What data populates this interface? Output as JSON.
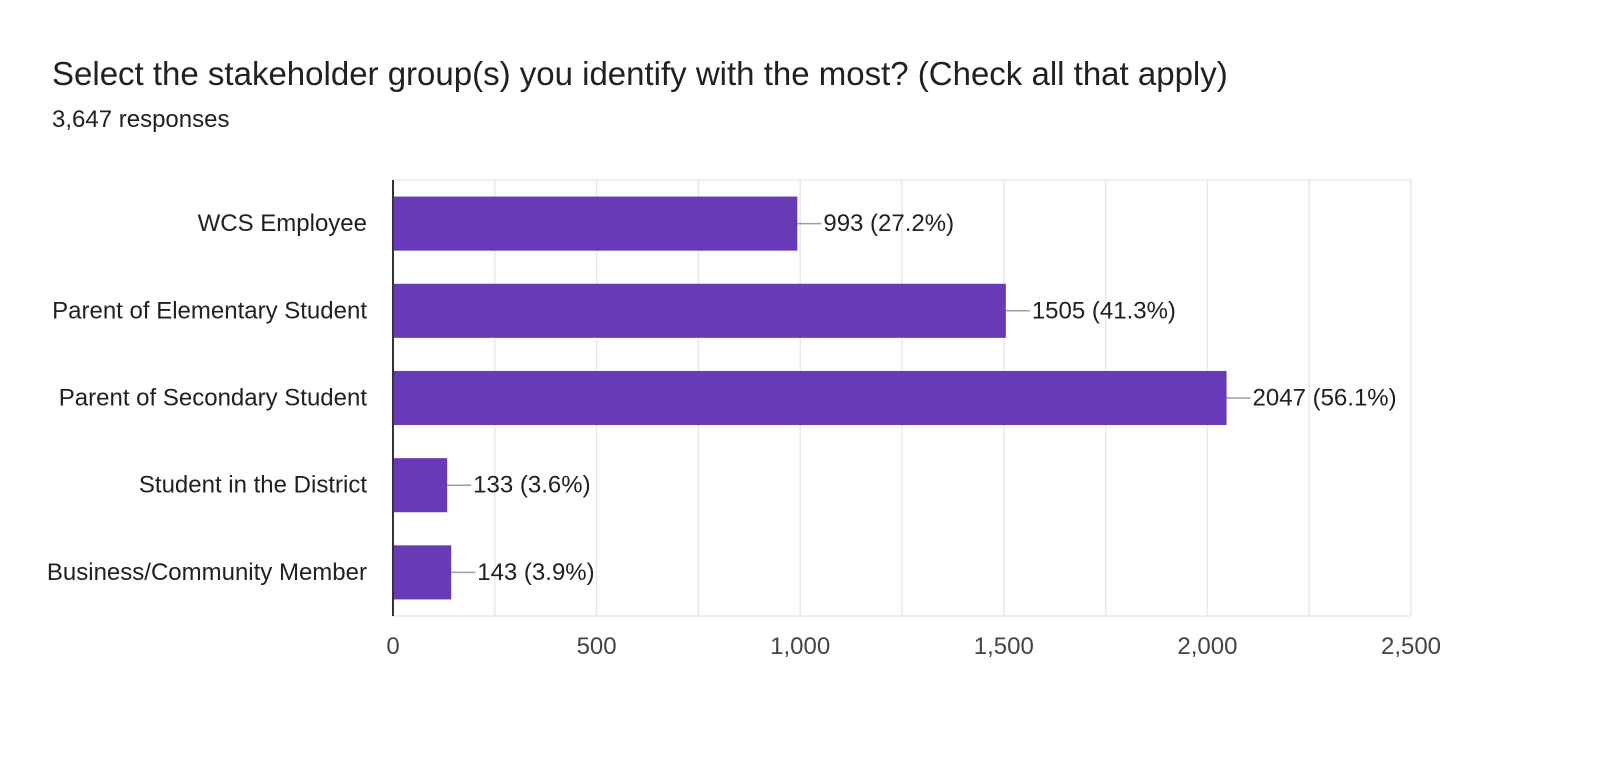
{
  "question": {
    "title": "Select the stakeholder group(s) you identify with the most? (Check all that apply)",
    "response_count": "3,647 responses"
  },
  "colors": {
    "bar": "#673ab7",
    "grid": "#e8e8e8",
    "axis": "#333333",
    "leader": "#9e9e9e",
    "text": "#202124"
  },
  "chart_data": {
    "type": "bar",
    "orientation": "horizontal",
    "categories": [
      "WCS Employee",
      "Parent of Elementary Student",
      "Parent of Secondary Student",
      "Student in the District",
      "Business/Community Member"
    ],
    "values": [
      993,
      1505,
      2047,
      133,
      143
    ],
    "data_labels": [
      "993 (27.2%)",
      "1505 (41.3%)",
      "2047 (56.1%)",
      "133 (3.6%)",
      "143 (3.9%)"
    ],
    "xlim": [
      0,
      2500
    ],
    "xticks": [
      0,
      500,
      1000,
      1500,
      2000,
      2500
    ],
    "xtick_labels": [
      "0",
      "500",
      "1,000",
      "1,500",
      "2,000",
      "2,500"
    ],
    "minor_gridlines": true,
    "grid": true
  }
}
